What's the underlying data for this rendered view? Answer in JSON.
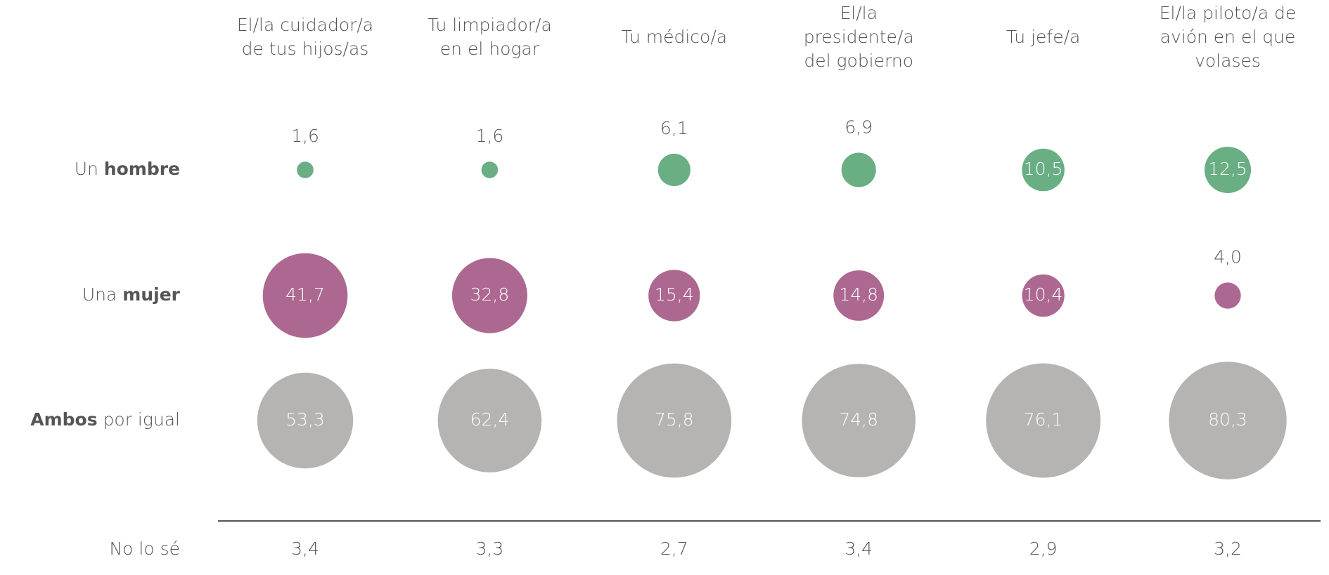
{
  "chart_data": {
    "type": "bubble",
    "categories": [
      [
        "El/la cuidador/a",
        "de tus hijos/as"
      ],
      [
        "Tu limpiador/a",
        "en el hogar"
      ],
      [
        "Tu médico/a"
      ],
      [
        "El/la",
        "presidente/a",
        "del gobierno"
      ],
      [
        "Tu jefe/a"
      ],
      [
        "El/la piloto/a de",
        "avión en el que",
        "volases"
      ]
    ],
    "series": [
      {
        "name": [
          {
            "text": "Un"
          },
          {
            "text": "hombre",
            "bold": true
          }
        ],
        "color": "#6aae84",
        "values": [
          1.6,
          1.6,
          6.1,
          6.9,
          10.5,
          12.5
        ],
        "value_labels": [
          "1,6",
          "1,6",
          "6,1",
          "6,9",
          "10,5",
          "12,5"
        ]
      },
      {
        "name": [
          {
            "text": "Una"
          },
          {
            "text": "mujer",
            "bold": true
          }
        ],
        "color": "#ad6891",
        "values": [
          41.7,
          32.8,
          15.4,
          14.8,
          10.4,
          4.0
        ],
        "value_labels": [
          "41,7",
          "32,8",
          "15,4",
          "14,8",
          "10,4",
          "4,0"
        ]
      },
      {
        "name": [
          {
            "text": "Ambos",
            "bold": true
          },
          {
            "text": "por igual"
          }
        ],
        "color": "#b5b4b2",
        "values": [
          53.3,
          62.4,
          75.8,
          74.8,
          76.1,
          80.3
        ],
        "value_labels": [
          "53,3",
          "62,4",
          "75,8",
          "74,8",
          "76,1",
          "80,3"
        ]
      }
    ],
    "footer_row": {
      "name": [
        {
          "text": "No lo sé"
        }
      ],
      "values": [
        3.4,
        3.3,
        2.7,
        3.4,
        2.9,
        3.2
      ],
      "value_labels": [
        "3,4",
        "3,3",
        "2,7",
        "3,4",
        "2,9",
        "3,2"
      ]
    }
  }
}
